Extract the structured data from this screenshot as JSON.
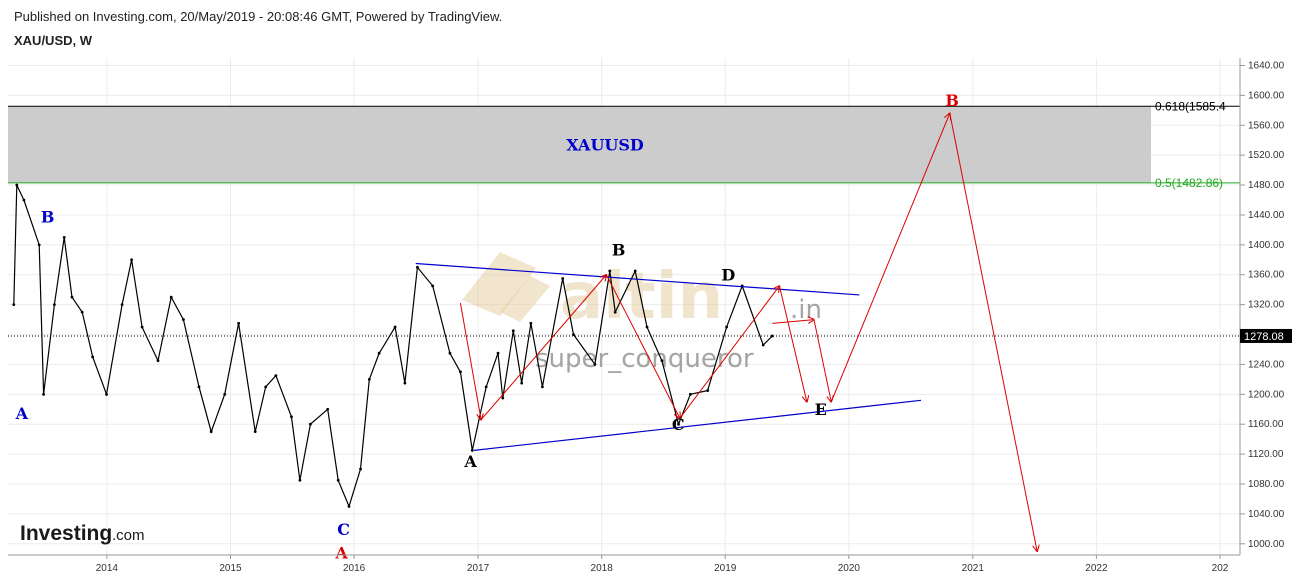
{
  "header": {
    "published": "Published on Investing.com, 20/May/2019 - 20:08:46 GMT, Powered by TradingView.",
    "symbol": "XAU/USD, W"
  },
  "logo": {
    "main": "Investing",
    "suffix": ".com"
  },
  "watermark": {
    "brand": "altin",
    "brand_suffix": ".in",
    "author": "super_conqueror"
  },
  "current_price": "1278.08",
  "zone": {
    "label": "XAUUSD"
  },
  "fib_levels": [
    {
      "label": "0.618(1585.4",
      "value": 1585.4,
      "color": "#000000"
    },
    {
      "label": "0.5(1482.86)",
      "value": 1482.86,
      "color": "#22aa22"
    }
  ],
  "colors": {
    "blue": "#0000cc",
    "red": "#dd0000",
    "black": "#000000",
    "zone": "#cccccc",
    "up": "#000000"
  },
  "chart_data": {
    "type": "line",
    "title": "XAU/USD, W",
    "ylim": [
      985,
      1650
    ],
    "xlim": [
      "2013-03-15",
      "2023-03-01"
    ],
    "y_ticks": [
      "1640.00",
      "1600.00",
      "1560.00",
      "1520.00",
      "1480.00",
      "1440.00",
      "1400.00",
      "1360.00",
      "1320.00",
      "1280.00",
      "1240.00",
      "1200.00",
      "1160.00",
      "1120.00",
      "1080.00",
      "1040.00",
      "1000.00"
    ],
    "x_ticks": [
      {
        "label": "2014",
        "date": "2014-01-01"
      },
      {
        "label": "2015",
        "date": "2015-01-01"
      },
      {
        "label": "2016",
        "date": "2016-01-01"
      },
      {
        "label": "2017",
        "date": "2017-01-01"
      },
      {
        "label": "2018",
        "date": "2018-01-01"
      },
      {
        "label": "2019",
        "date": "2019-01-01"
      },
      {
        "label": "2020",
        "date": "2020-01-01"
      },
      {
        "label": "2021",
        "date": "2021-01-01"
      },
      {
        "label": "2022",
        "date": "2022-01-01"
      },
      {
        "label": "202",
        "date": "2023-01-01"
      }
    ],
    "series": [
      {
        "values": [
          {
            "x": "2013-04-01",
            "y": 1320
          },
          {
            "x": "2013-04-10",
            "y": 1480
          },
          {
            "x": "2013-05-01",
            "y": 1460
          },
          {
            "x": "2013-06-15",
            "y": 1400
          },
          {
            "x": "2013-06-28",
            "y": 1200
          },
          {
            "x": "2013-07-30",
            "y": 1320
          },
          {
            "x": "2013-08-28",
            "y": 1410
          },
          {
            "x": "2013-09-20",
            "y": 1330
          },
          {
            "x": "2013-10-20",
            "y": 1310
          },
          {
            "x": "2013-11-20",
            "y": 1250
          },
          {
            "x": "2013-12-31",
            "y": 1200
          },
          {
            "x": "2014-02-15",
            "y": 1320
          },
          {
            "x": "2014-03-15",
            "y": 1380
          },
          {
            "x": "2014-04-15",
            "y": 1290
          },
          {
            "x": "2014-06-01",
            "y": 1245
          },
          {
            "x": "2014-07-10",
            "y": 1330
          },
          {
            "x": "2014-08-15",
            "y": 1300
          },
          {
            "x": "2014-09-30",
            "y": 1210
          },
          {
            "x": "2014-11-05",
            "y": 1150
          },
          {
            "x": "2014-12-15",
            "y": 1200
          },
          {
            "x": "2015-01-25",
            "y": 1295
          },
          {
            "x": "2015-03-15",
            "y": 1150
          },
          {
            "x": "2015-04-15",
            "y": 1210
          },
          {
            "x": "2015-05-15",
            "y": 1225
          },
          {
            "x": "2015-06-30",
            "y": 1170
          },
          {
            "x": "2015-07-25",
            "y": 1085
          },
          {
            "x": "2015-08-25",
            "y": 1160
          },
          {
            "x": "2015-10-15",
            "y": 1180
          },
          {
            "x": "2015-11-15",
            "y": 1085
          },
          {
            "x": "2015-12-17",
            "y": 1050
          },
          {
            "x": "2016-01-20",
            "y": 1100
          },
          {
            "x": "2016-02-15",
            "y": 1220
          },
          {
            "x": "2016-03-15",
            "y": 1255
          },
          {
            "x": "2016-05-01",
            "y": 1290
          },
          {
            "x": "2016-05-30",
            "y": 1215
          },
          {
            "x": "2016-07-06",
            "y": 1370
          },
          {
            "x": "2016-08-20",
            "y": 1345
          },
          {
            "x": "2016-10-10",
            "y": 1255
          },
          {
            "x": "2016-11-10",
            "y": 1230
          },
          {
            "x": "2016-12-15",
            "y": 1125
          },
          {
            "x": "2017-01-25",
            "y": 1210
          },
          {
            "x": "2017-03-01",
            "y": 1255
          },
          {
            "x": "2017-03-15",
            "y": 1195
          },
          {
            "x": "2017-04-15",
            "y": 1285
          },
          {
            "x": "2017-05-10",
            "y": 1215
          },
          {
            "x": "2017-06-06",
            "y": 1295
          },
          {
            "x": "2017-07-10",
            "y": 1210
          },
          {
            "x": "2017-09-08",
            "y": 1355
          },
          {
            "x": "2017-10-10",
            "y": 1280
          },
          {
            "x": "2017-12-12",
            "y": 1240
          },
          {
            "x": "2018-01-25",
            "y": 1365
          },
          {
            "x": "2018-02-10",
            "y": 1310
          },
          {
            "x": "2018-04-10",
            "y": 1365
          },
          {
            "x": "2018-05-15",
            "y": 1290
          },
          {
            "x": "2018-06-28",
            "y": 1245
          },
          {
            "x": "2018-08-16",
            "y": 1160
          },
          {
            "x": "2018-09-20",
            "y": 1200
          },
          {
            "x": "2018-11-10",
            "y": 1205
          },
          {
            "x": "2019-01-05",
            "y": 1290
          },
          {
            "x": "2019-02-20",
            "y": 1345
          },
          {
            "x": "2019-04-23",
            "y": 1266
          },
          {
            "x": "2019-05-20",
            "y": 1278
          }
        ]
      }
    ],
    "trendlines": [
      {
        "name": "upper",
        "color": "#0000cc",
        "from": {
          "x": "2016-07-01",
          "y": 1375
        },
        "to": {
          "x": "2020-02-01",
          "y": 1333
        }
      },
      {
        "name": "lower",
        "color": "#0000cc",
        "from": {
          "x": "2016-12-20",
          "y": 1125
        },
        "to": {
          "x": "2020-08-01",
          "y": 1192
        }
      }
    ],
    "projection": [
      {
        "x": "2016-11-10",
        "y": 1322
      },
      {
        "x": "2017-01-10",
        "y": 1166
      },
      {
        "x": "2018-01-15",
        "y": 1360
      },
      {
        "x": "2018-08-20",
        "y": 1168
      },
      {
        "x": "2019-06-10",
        "y": 1345
      },
      {
        "x": "2019-08-30",
        "y": 1190
      },
      {
        "x": "2019-05-20",
        "y": 1295
      },
      {
        "x": "2019-09-20",
        "y": 1300
      },
      {
        "x": "2019-11-10",
        "y": 1190
      },
      {
        "x": "2020-10-25",
        "y": 1576
      },
      {
        "x": "2021-07-10",
        "y": 990
      }
    ],
    "annotations": [
      {
        "text": "B",
        "x": "2013-07-10",
        "y": 1430,
        "color": "#0000cc"
      },
      {
        "text": "A",
        "x": "2013-04-25",
        "y": 1167,
        "color": "#0000cc"
      },
      {
        "text": "C",
        "x": "2015-12-01",
        "y": 1012,
        "color": "#0000cc"
      },
      {
        "text": "A",
        "x": "2015-11-25",
        "y": 980,
        "color": "#dd0000"
      },
      {
        "text": "A",
        "x": "2016-12-10",
        "y": 1103,
        "color": "#000000"
      },
      {
        "text": "B",
        "x": "2018-02-20",
        "y": 1386,
        "color": "#000000"
      },
      {
        "text": "C",
        "x": "2018-08-15",
        "y": 1152,
        "color": "#000000"
      },
      {
        "text": "D",
        "x": "2019-01-10",
        "y": 1352,
        "color": "#000000"
      },
      {
        "text": "E",
        "x": "2019-10-10",
        "y": 1172,
        "color": "#000000"
      },
      {
        "text": "B",
        "x": "2020-11-01",
        "y": 1586,
        "color": "#dd0000"
      }
    ]
  }
}
